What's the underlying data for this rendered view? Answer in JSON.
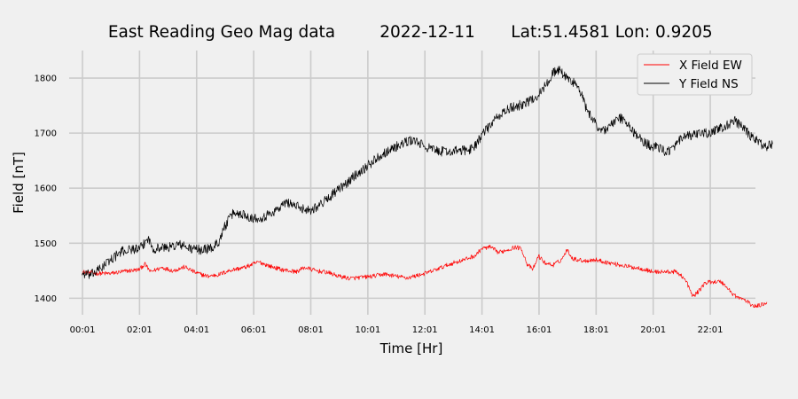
{
  "chart_data": {
    "type": "line",
    "title_parts": [
      "East Reading Geo Mag data",
      "2022-12-11",
      "Lat:51.4581  Lon: 0.9205"
    ],
    "xlabel": "Time  [Hr]",
    "ylabel": "Field  [nT]",
    "x_unit": "hours since 00:00 (2022-12-11)",
    "xlim": [
      0.55,
      24.6
    ],
    "ylim": [
      1370,
      1850
    ],
    "x_ticks": [
      {
        "x": 1.017,
        "label": "00:01"
      },
      {
        "x": 3.017,
        "label": "02:01"
      },
      {
        "x": 5.017,
        "label": "04:01"
      },
      {
        "x": 7.017,
        "label": "06:01"
      },
      {
        "x": 9.017,
        "label": "08:01"
      },
      {
        "x": 11.017,
        "label": "10:01"
      },
      {
        "x": 13.017,
        "label": "12:01"
      },
      {
        "x": 15.017,
        "label": "14:01"
      },
      {
        "x": 17.017,
        "label": "16:01"
      },
      {
        "x": 19.017,
        "label": "18:01"
      },
      {
        "x": 21.017,
        "label": "20:01"
      },
      {
        "x": 23.017,
        "label": "22:01"
      }
    ],
    "y_ticks": [
      1400,
      1500,
      1600,
      1700,
      1800
    ],
    "grid": true,
    "legend_position": "top-right",
    "series": [
      {
        "name": "X Field EW",
        "color": "#ff0000",
        "points": [
          [
            1.0,
            1448
          ],
          [
            1.5,
            1445
          ],
          [
            2.0,
            1445
          ],
          [
            2.5,
            1449
          ],
          [
            3.0,
            1452
          ],
          [
            3.2,
            1462
          ],
          [
            3.4,
            1448
          ],
          [
            3.8,
            1456
          ],
          [
            4.2,
            1450
          ],
          [
            4.6,
            1457
          ],
          [
            5.0,
            1446
          ],
          [
            5.4,
            1440
          ],
          [
            5.8,
            1443
          ],
          [
            6.2,
            1451
          ],
          [
            6.7,
            1456
          ],
          [
            7.2,
            1466
          ],
          [
            7.6,
            1458
          ],
          [
            8.0,
            1452
          ],
          [
            8.5,
            1448
          ],
          [
            8.8,
            1456
          ],
          [
            9.2,
            1450
          ],
          [
            9.6,
            1447
          ],
          [
            10.0,
            1440
          ],
          [
            10.4,
            1436
          ],
          [
            10.8,
            1438
          ],
          [
            11.2,
            1440
          ],
          [
            11.6,
            1444
          ],
          [
            12.0,
            1440
          ],
          [
            12.4,
            1437
          ],
          [
            12.8,
            1442
          ],
          [
            13.2,
            1448
          ],
          [
            13.6,
            1456
          ],
          [
            14.0,
            1464
          ],
          [
            14.4,
            1470
          ],
          [
            14.8,
            1478
          ],
          [
            15.0,
            1490
          ],
          [
            15.3,
            1493
          ],
          [
            15.6,
            1483
          ],
          [
            15.9,
            1488
          ],
          [
            16.2,
            1493
          ],
          [
            16.4,
            1490
          ],
          [
            16.6,
            1462
          ],
          [
            16.8,
            1452
          ],
          [
            17.0,
            1477
          ],
          [
            17.2,
            1465
          ],
          [
            17.5,
            1460
          ],
          [
            17.8,
            1470
          ],
          [
            18.0,
            1488
          ],
          [
            18.2,
            1472
          ],
          [
            18.6,
            1468
          ],
          [
            19.0,
            1470
          ],
          [
            19.4,
            1465
          ],
          [
            19.8,
            1461
          ],
          [
            20.2,
            1457
          ],
          [
            20.6,
            1454
          ],
          [
            21.0,
            1448
          ],
          [
            21.4,
            1448
          ],
          [
            21.8,
            1448
          ],
          [
            22.0,
            1442
          ],
          [
            22.2,
            1428
          ],
          [
            22.4,
            1403
          ],
          [
            22.6,
            1412
          ],
          [
            22.8,
            1426
          ],
          [
            23.0,
            1430
          ],
          [
            23.4,
            1430
          ],
          [
            23.6,
            1420
          ],
          [
            23.8,
            1408
          ],
          [
            24.0,
            1401
          ],
          [
            24.2,
            1398
          ],
          [
            24.4,
            1390
          ],
          [
            24.6,
            1385
          ],
          [
            24.8,
            1388
          ],
          [
            25.0,
            1393
          ]
        ]
      },
      {
        "name": "Y Field NS",
        "color": "#000000",
        "points": [
          [
            1.0,
            1445
          ],
          [
            1.3,
            1442
          ],
          [
            1.6,
            1452
          ],
          [
            2.0,
            1470
          ],
          [
            2.4,
            1485
          ],
          [
            2.8,
            1490
          ],
          [
            3.0,
            1488
          ],
          [
            3.2,
            1500
          ],
          [
            3.3,
            1510
          ],
          [
            3.5,
            1490
          ],
          [
            3.8,
            1492
          ],
          [
            4.1,
            1493
          ],
          [
            4.4,
            1498
          ],
          [
            4.8,
            1490
          ],
          [
            5.2,
            1488
          ],
          [
            5.6,
            1492
          ],
          [
            5.8,
            1504
          ],
          [
            6.0,
            1530
          ],
          [
            6.3,
            1555
          ],
          [
            6.7,
            1552
          ],
          [
            7.0,
            1545
          ],
          [
            7.4,
            1548
          ],
          [
            7.8,
            1560
          ],
          [
            8.2,
            1575
          ],
          [
            8.6,
            1565
          ],
          [
            9.0,
            1560
          ],
          [
            9.4,
            1572
          ],
          [
            9.8,
            1590
          ],
          [
            10.2,
            1605
          ],
          [
            10.6,
            1625
          ],
          [
            11.0,
            1640
          ],
          [
            11.4,
            1658
          ],
          [
            11.8,
            1670
          ],
          [
            12.2,
            1680
          ],
          [
            12.6,
            1688
          ],
          [
            13.0,
            1676
          ],
          [
            13.4,
            1668
          ],
          [
            13.8,
            1666
          ],
          [
            14.2,
            1668
          ],
          [
            14.6,
            1670
          ],
          [
            14.8,
            1680
          ],
          [
            15.0,
            1695
          ],
          [
            15.2,
            1708
          ],
          [
            15.4,
            1720
          ],
          [
            15.7,
            1735
          ],
          [
            16.0,
            1745
          ],
          [
            16.3,
            1750
          ],
          [
            16.7,
            1758
          ],
          [
            17.0,
            1770
          ],
          [
            17.3,
            1790
          ],
          [
            17.5,
            1810
          ],
          [
            17.7,
            1815
          ],
          [
            18.0,
            1800
          ],
          [
            18.3,
            1790
          ],
          [
            18.5,
            1770
          ],
          [
            18.7,
            1740
          ],
          [
            18.9,
            1725
          ],
          [
            19.1,
            1710
          ],
          [
            19.3,
            1705
          ],
          [
            19.6,
            1718
          ],
          [
            19.9,
            1728
          ],
          [
            20.2,
            1710
          ],
          [
            20.5,
            1692
          ],
          [
            20.8,
            1680
          ],
          [
            21.1,
            1675
          ],
          [
            21.4,
            1668
          ],
          [
            21.7,
            1670
          ],
          [
            22.0,
            1690
          ],
          [
            22.3,
            1695
          ],
          [
            22.6,
            1698
          ],
          [
            22.9,
            1700
          ],
          [
            23.1,
            1702
          ],
          [
            23.3,
            1708
          ],
          [
            23.5,
            1710
          ],
          [
            23.7,
            1718
          ],
          [
            23.9,
            1722
          ],
          [
            24.1,
            1712
          ],
          [
            24.3,
            1702
          ],
          [
            24.4,
            1695
          ],
          [
            24.5,
            1690
          ],
          [
            24.6,
            1690
          ],
          [
            24.7,
            1685
          ],
          [
            24.8,
            1680
          ],
          [
            24.9,
            1680
          ],
          [
            25.0,
            1675
          ],
          [
            25.2,
            1680
          ]
        ]
      }
    ]
  }
}
